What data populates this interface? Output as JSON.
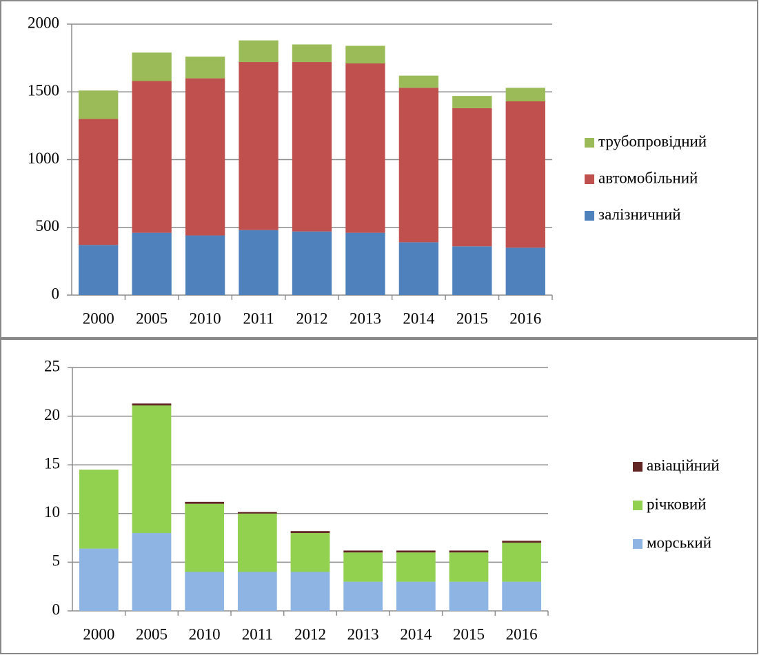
{
  "chart_data": [
    {
      "type": "stacked_bar",
      "categories": [
        "2000",
        "2005",
        "2010",
        "2011",
        "2012",
        "2013",
        "2014",
        "2015",
        "2016"
      ],
      "series": [
        {
          "name": "залізничний",
          "color": "#4f81bd",
          "values": [
            370,
            460,
            440,
            480,
            470,
            460,
            390,
            360,
            350
          ]
        },
        {
          "name": "автомобільний",
          "color": "#c0504d",
          "values": [
            930,
            1120,
            1160,
            1240,
            1250,
            1250,
            1140,
            1020,
            1080
          ]
        },
        {
          "name": "трубопровідний",
          "color": "#9bbb59",
          "values": [
            210,
            210,
            160,
            160,
            130,
            130,
            90,
            90,
            100
          ]
        }
      ],
      "ylim": [
        0,
        2000
      ],
      "yticks": [
        0,
        500,
        1000,
        1500,
        2000
      ],
      "grid": true,
      "legend": "right"
    },
    {
      "type": "stacked_bar",
      "categories": [
        "2000",
        "2005",
        "2010",
        "2011",
        "2012",
        "2013",
        "2014",
        "2015",
        "2016"
      ],
      "series": [
        {
          "name": "морський",
          "color": "#8db4e2",
          "values": [
            6.4,
            8,
            4,
            4,
            4,
            3,
            3,
            3,
            3
          ]
        },
        {
          "name": "річковий",
          "color": "#92d050",
          "values": [
            8.1,
            13.1,
            7,
            6,
            4,
            3,
            3,
            3,
            4
          ]
        },
        {
          "name": "авіаційний",
          "color": "#632523",
          "values": [
            0,
            0.2,
            0.2,
            0.15,
            0.2,
            0.2,
            0.2,
            0.2,
            0.2
          ]
        }
      ],
      "ylim": [
        0,
        25
      ],
      "yticks": [
        0,
        5,
        10,
        15,
        20,
        25
      ],
      "grid": true,
      "legend": "right"
    }
  ]
}
